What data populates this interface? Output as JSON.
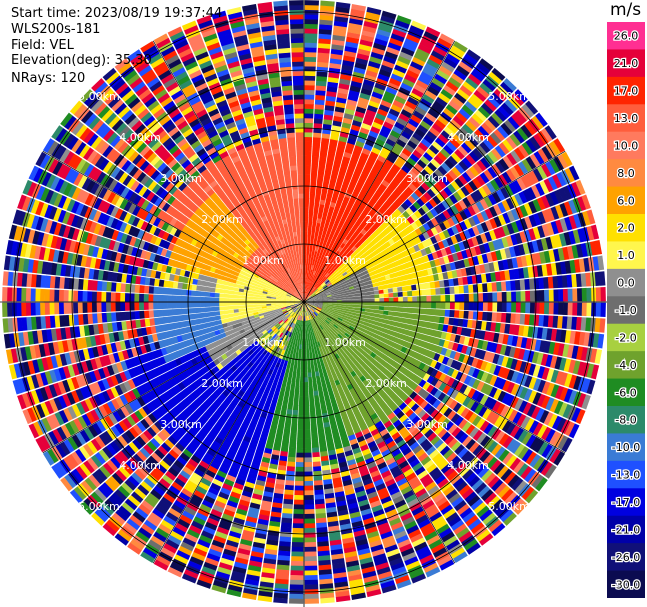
{
  "header": {
    "start_time_label": "Start time:",
    "start_time": "2023/08/19 19:37:44",
    "instrument": "WLS200s-181",
    "field_label": "Field:",
    "field": "VEL",
    "elevation_label": "Elevation(deg):",
    "elevation": "35.30",
    "nrays_label": "NRays:",
    "nrays": "120"
  },
  "colorbar": {
    "unit": "m/s",
    "levels": [
      {
        "label": "26.0",
        "color": "#ff2f92"
      },
      {
        "label": "21.0",
        "color": "#e5003a"
      },
      {
        "label": "17.0",
        "color": "#ff2400"
      },
      {
        "label": "13.0",
        "color": "#ff5d3c"
      },
      {
        "label": "10.0",
        "color": "#ff7a5e"
      },
      {
        "label": "8.0",
        "color": "#ff8a40"
      },
      {
        "label": "6.0",
        "color": "#ffa200"
      },
      {
        "label": "2.0",
        "color": "#ffe000"
      },
      {
        "label": "1.0",
        "color": "#fff64d"
      },
      {
        "label": "0.0",
        "color": "#8f8f8f"
      },
      {
        "label": "-1.0",
        "color": "#6e6e6e"
      },
      {
        "label": "-2.0",
        "color": "#a8d040"
      },
      {
        "label": "-4.0",
        "color": "#6fa22d"
      },
      {
        "label": "-6.0",
        "color": "#1f8c22"
      },
      {
        "label": "-8.0",
        "color": "#2c8a6a"
      },
      {
        "label": "-10.0",
        "color": "#3a7bd5"
      },
      {
        "label": "-13.0",
        "color": "#1f50ff"
      },
      {
        "label": "-17.0",
        "color": "#0000e0"
      },
      {
        "label": "-21.0",
        "color": "#0000a8"
      },
      {
        "label": "-26.0",
        "color": "#101078"
      },
      {
        "label": "-30.0",
        "color": "#0b0b50"
      }
    ]
  },
  "chart_data": {
    "type": "heatmap",
    "projection": "polar-ppi",
    "field": "VEL",
    "unit": "m/s",
    "nrays": 120,
    "range_rings_km": [
      1.0,
      2.0,
      3.0,
      4.0,
      5.0
    ],
    "ring_labels": [
      "1.00km",
      "2.00km",
      "3.00km",
      "4.00km",
      "5.00km"
    ],
    "spoke_angles_deg": [
      0,
      30,
      60,
      90,
      120,
      150,
      180,
      210,
      240,
      270,
      300,
      330
    ],
    "max_range_km": 5.2,
    "value_range": [
      -30.0,
      26.0
    ],
    "sectors": [
      {
        "azimuth_from": 300,
        "azimuth_to": 360,
        "range_km": [
          0,
          2.8
        ],
        "value": 13.0,
        "note": "orange-red"
      },
      {
        "azimuth_from": 0,
        "azimuth_to": 45,
        "range_km": [
          0,
          2.8
        ],
        "value": 17.0,
        "note": "red"
      },
      {
        "azimuth_from": 45,
        "azimuth_to": 80,
        "range_km": [
          0.5,
          2.2
        ],
        "value": 2.0,
        "note": "yellow"
      },
      {
        "azimuth_from": 60,
        "azimuth_to": 110,
        "range_km": [
          0,
          1.2
        ],
        "value": -1.0,
        "note": "grey"
      },
      {
        "azimuth_from": 90,
        "azimuth_to": 160,
        "range_km": [
          0.3,
          2.4
        ],
        "value": -4.0,
        "note": "light-green"
      },
      {
        "azimuth_from": 160,
        "azimuth_to": 200,
        "range_km": [
          0.3,
          2.6
        ],
        "value": -6.0,
        "note": "green"
      },
      {
        "azimuth_from": 195,
        "azimuth_to": 250,
        "range_km": [
          1.0,
          3.2
        ],
        "value": -17.0,
        "note": "blue"
      },
      {
        "azimuth_from": 230,
        "azimuth_to": 300,
        "range_km": [
          0.4,
          1.8
        ],
        "value": 0.0,
        "note": "grey"
      },
      {
        "azimuth_from": 255,
        "azimuth_to": 300,
        "range_km": [
          0.0,
          1.5
        ],
        "value": 1.0,
        "note": "yellow"
      },
      {
        "azimuth_from": 245,
        "azimuth_to": 275,
        "range_km": [
          1.4,
          2.6
        ],
        "value": -10.0,
        "note": "light-blue"
      },
      {
        "azimuth_from": 285,
        "azimuth_to": 320,
        "range_km": [
          1.2,
          2.4
        ],
        "value": 6.0,
        "note": "orange"
      }
    ],
    "outer_noise_range_km": [
      2.4,
      5.2
    ]
  }
}
